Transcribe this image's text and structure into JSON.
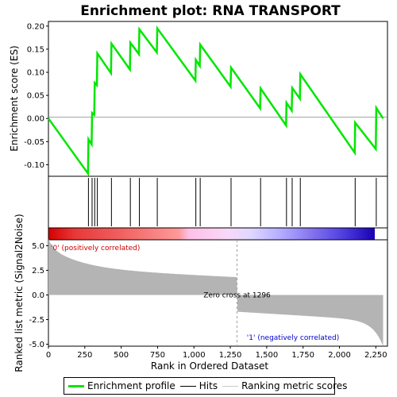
{
  "chart_data": {
    "type": "line",
    "title": "Enrichment plot: RNA TRANSPORT",
    "xlabel": "Rank in Ordered Dataset",
    "ylabel_top": "Enrichment score (ES)",
    "ylabel_bottom": "Ranked list metric (Signal2Noise)",
    "x_range": [
      0,
      2330
    ],
    "x_ticks": [
      0,
      250,
      500,
      750,
      1000,
      1250,
      1500,
      1750,
      2000,
      2250
    ],
    "x_tick_labels": [
      "0",
      "250",
      "500",
      "750",
      "1,000",
      "1,250",
      "1,500",
      "1,750",
      "2,000",
      "2,250"
    ],
    "es_ylim": [
      -0.125,
      0.21
    ],
    "es_ticks": [
      -0.1,
      -0.05,
      0.0,
      0.05,
      0.1,
      0.15,
      0.2
    ],
    "es_tick_labels": [
      "-0.10",
      "-0.05",
      "0.00",
      "0.05",
      "0.10",
      "0.15",
      "0.20"
    ],
    "metric_ylim": [
      -5.2,
      5.6
    ],
    "metric_ticks": [
      -5.0,
      -2.5,
      0.0,
      2.5,
      5.0
    ],
    "metric_tick_labels": [
      "-5.0",
      "-2.5",
      "0.0",
      "2.5",
      "5.0"
    ],
    "enrichment_profile": [
      [
        0,
        0.0
      ],
      [
        272,
        -0.119
      ],
      [
        275,
        -0.045
      ],
      [
        297,
        -0.056
      ],
      [
        300,
        0.012
      ],
      [
        315,
        0.008
      ],
      [
        318,
        0.077
      ],
      [
        333,
        0.072
      ],
      [
        336,
        0.141
      ],
      [
        430,
        0.098
      ],
      [
        433,
        0.162
      ],
      [
        560,
        0.106
      ],
      [
        563,
        0.164
      ],
      [
        622,
        0.139
      ],
      [
        625,
        0.193
      ],
      [
        745,
        0.143
      ],
      [
        748,
        0.195
      ],
      [
        1010,
        0.082
      ],
      [
        1013,
        0.127
      ],
      [
        1040,
        0.114
      ],
      [
        1043,
        0.16
      ],
      [
        1252,
        0.069
      ],
      [
        1255,
        0.11
      ],
      [
        1455,
        0.022
      ],
      [
        1458,
        0.065
      ],
      [
        1633,
        -0.015
      ],
      [
        1636,
        0.034
      ],
      [
        1672,
        0.017
      ],
      [
        1675,
        0.066
      ],
      [
        1728,
        0.043
      ],
      [
        1731,
        0.096
      ],
      [
        2105,
        -0.074
      ],
      [
        2108,
        -0.009
      ],
      [
        2250,
        -0.066
      ],
      [
        2253,
        0.023
      ],
      [
        2300,
        0.0
      ]
    ],
    "hits": [
      275,
      300,
      318,
      336,
      433,
      563,
      625,
      748,
      1013,
      1043,
      1255,
      1458,
      1636,
      1675,
      1731,
      2108,
      2253
    ],
    "zero_cross_rank": 1296,
    "zero_cross_label": "Zero cross at 1296",
    "pos_label": "'0' (positively correlated)",
    "neg_label": "'1' (negatively correlated)",
    "colors": {
      "profile": "#00e600",
      "hits": "#000000",
      "metric_fill": "#b4b4b4",
      "pos_text": "#cc0000",
      "neg_text": "#0000cc",
      "plot_border": "#000000"
    },
    "legend": {
      "profile": "Enrichment profile",
      "hits": "Hits",
      "metric": "Ranking metric scores"
    }
  }
}
